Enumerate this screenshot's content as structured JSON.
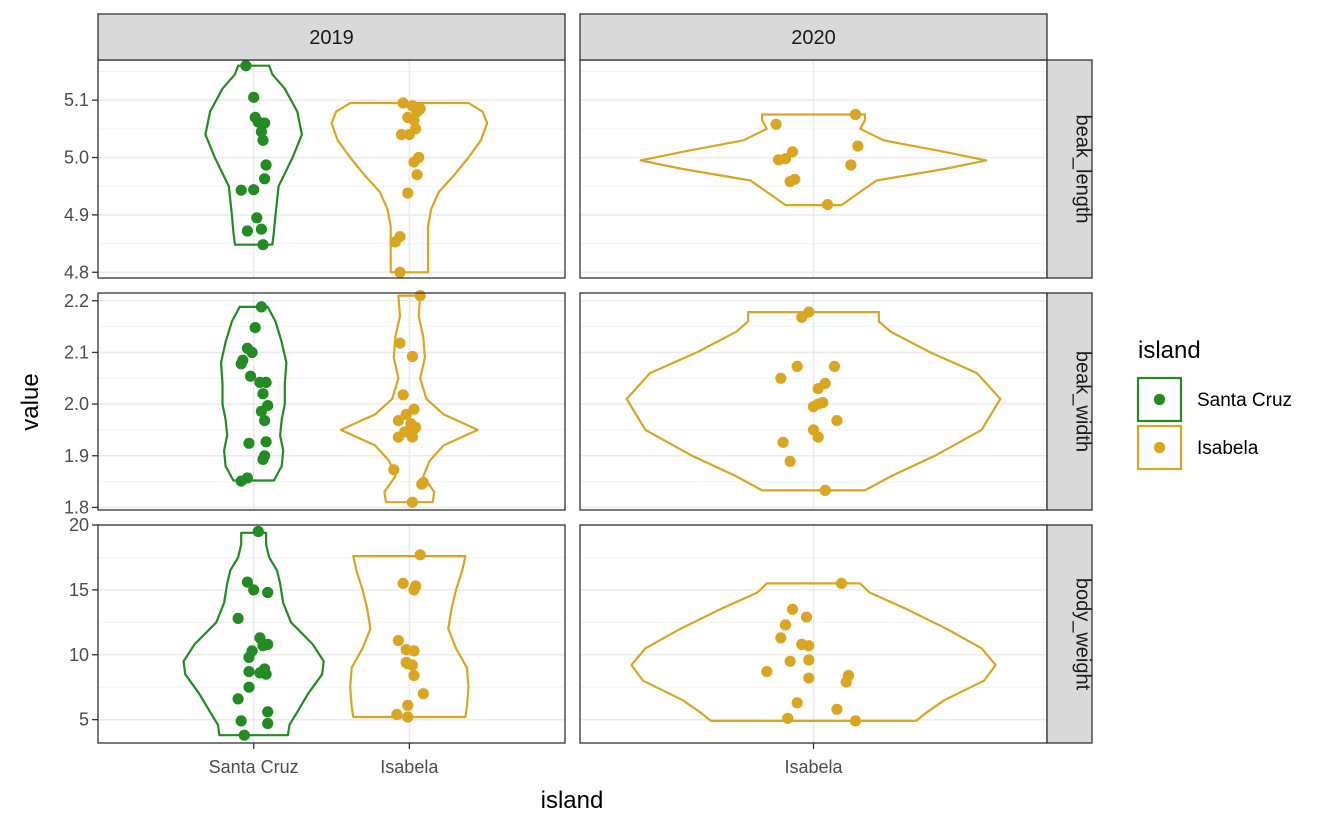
{
  "chart_data": {
    "type": "violin",
    "xlabel": "island",
    "ylabel": "value",
    "legend": {
      "title": "island",
      "placement": "right",
      "entries": [
        {
          "name": "Santa Cruz",
          "color": "#228B22"
        },
        {
          "name": "Isabela",
          "color": "#DAA520"
        }
      ]
    },
    "facet_cols": [
      "2019",
      "2020"
    ],
    "facet_rows": [
      "beak_length",
      "beak_width",
      "body_weight"
    ],
    "x_categories": {
      "2019": [
        "Santa Cruz",
        "Isabela"
      ],
      "2020": [
        "Isabela"
      ]
    },
    "rows": {
      "beak_length": {
        "ylim": [
          4.79,
          5.17
        ],
        "yticks": [
          4.8,
          4.9,
          5.0,
          5.1
        ],
        "ytick_labels": [
          "4.8",
          "4.9",
          "5.0",
          "5.1"
        ]
      },
      "beak_width": {
        "ylim": [
          1.795,
          2.215
        ],
        "yticks": [
          1.8,
          1.9,
          2.0,
          2.1,
          2.2
        ],
        "ytick_labels": [
          "1.8",
          "1.9",
          "2.0",
          "2.1",
          "2.2"
        ]
      },
      "body_weight": {
        "ylim": [
          3.2,
          20.0
        ],
        "yticks": [
          5,
          10,
          15,
          20
        ],
        "ytick_labels": [
          "5",
          "10",
          "15",
          "20"
        ]
      }
    },
    "groups": [
      {
        "row": "beak_length",
        "col": "2019",
        "island": "Santa Cruz",
        "points": [
          [
            -0.05,
            5.16
          ],
          [
            0.0,
            5.105
          ],
          [
            0.01,
            5.07
          ],
          [
            0.03,
            5.062
          ],
          [
            0.07,
            5.06
          ],
          [
            0.05,
            5.045
          ],
          [
            0.06,
            5.03
          ],
          [
            0.08,
            4.987
          ],
          [
            0.07,
            4.963
          ],
          [
            -0.08,
            4.943
          ],
          [
            0.0,
            4.944
          ],
          [
            0.02,
            4.895
          ],
          [
            0.05,
            4.875
          ],
          [
            -0.04,
            4.872
          ],
          [
            0.06,
            4.848
          ]
        ],
        "violin": [
          [
            4.848,
            0.12
          ],
          [
            4.87,
            0.13
          ],
          [
            4.9,
            0.14
          ],
          [
            4.95,
            0.16
          ],
          [
            5.0,
            0.25
          ],
          [
            5.04,
            0.31
          ],
          [
            5.08,
            0.28
          ],
          [
            5.12,
            0.2
          ],
          [
            5.145,
            0.12
          ],
          [
            5.16,
            0.1
          ]
        ]
      },
      {
        "row": "beak_length",
        "col": "2019",
        "island": "Isabela",
        "points": [
          [
            -0.04,
            5.095
          ],
          [
            0.02,
            5.09
          ],
          [
            0.05,
            5.08
          ],
          [
            0.07,
            5.085
          ],
          [
            -0.01,
            5.07
          ],
          [
            0.03,
            5.065
          ],
          [
            0.04,
            5.05
          ],
          [
            -0.05,
            5.04
          ],
          [
            0.0,
            5.04
          ],
          [
            0.06,
            5.0
          ],
          [
            0.03,
            4.992
          ],
          [
            0.05,
            4.97
          ],
          [
            -0.01,
            4.938
          ],
          [
            -0.06,
            4.862
          ],
          [
            -0.09,
            4.853
          ],
          [
            -0.06,
            4.8
          ]
        ],
        "violin": [
          [
            4.8,
            0.12
          ],
          [
            4.82,
            0.12
          ],
          [
            4.85,
            0.12
          ],
          [
            4.88,
            0.12
          ],
          [
            4.91,
            0.14
          ],
          [
            4.94,
            0.19
          ],
          [
            4.97,
            0.29
          ],
          [
            5.0,
            0.38
          ],
          [
            5.03,
            0.46
          ],
          [
            5.06,
            0.5
          ],
          [
            5.08,
            0.47
          ],
          [
            5.095,
            0.38
          ]
        ]
      },
      {
        "row": "beak_length",
        "col": "2020",
        "island": "Isabela",
        "points": [
          [
            -0.16,
            5.058
          ],
          [
            0.18,
            5.075
          ],
          [
            0.19,
            5.02
          ],
          [
            -0.09,
            5.01
          ],
          [
            -0.12,
            4.998
          ],
          [
            -0.15,
            4.996
          ],
          [
            0.16,
            4.987
          ],
          [
            -0.08,
            4.962
          ],
          [
            -0.1,
            4.958
          ],
          [
            0.06,
            4.918
          ]
        ],
        "violin": [
          [
            4.917,
            0.12
          ],
          [
            4.94,
            0.2
          ],
          [
            4.96,
            0.27
          ],
          [
            4.98,
            0.56
          ],
          [
            4.995,
            0.74
          ],
          [
            5.01,
            0.56
          ],
          [
            5.03,
            0.3
          ],
          [
            5.05,
            0.2
          ],
          [
            5.065,
            0.22
          ],
          [
            5.075,
            0.22
          ]
        ]
      },
      {
        "row": "beak_width",
        "col": "2019",
        "island": "Santa Cruz",
        "points": [
          [
            0.05,
            2.188
          ],
          [
            0.01,
            2.148
          ],
          [
            -0.04,
            2.108
          ],
          [
            -0.01,
            2.1
          ],
          [
            -0.07,
            2.085
          ],
          [
            -0.08,
            2.078
          ],
          [
            -0.02,
            2.054
          ],
          [
            0.04,
            2.042
          ],
          [
            0.08,
            2.042
          ],
          [
            0.06,
            2.02
          ],
          [
            0.09,
            1.997
          ],
          [
            0.05,
            1.986
          ],
          [
            0.07,
            1.968
          ],
          [
            -0.03,
            1.924
          ],
          [
            0.08,
            1.927
          ],
          [
            0.07,
            1.9
          ],
          [
            0.06,
            1.893
          ],
          [
            -0.04,
            1.857
          ],
          [
            -0.08,
            1.851
          ]
        ],
        "violin": [
          [
            1.852,
            0.13
          ],
          [
            1.88,
            0.18
          ],
          [
            1.91,
            0.19
          ],
          [
            1.94,
            0.17
          ],
          [
            1.97,
            0.18
          ],
          [
            2.0,
            0.2
          ],
          [
            2.04,
            0.2
          ],
          [
            2.08,
            0.21
          ],
          [
            2.12,
            0.18
          ],
          [
            2.16,
            0.14
          ],
          [
            2.188,
            0.09
          ]
        ]
      },
      {
        "row": "beak_width",
        "col": "2019",
        "island": "Isabela",
        "points": [
          [
            0.07,
            2.21
          ],
          [
            -0.06,
            2.118
          ],
          [
            0.02,
            2.092
          ],
          [
            -0.04,
            2.018
          ],
          [
            0.03,
            1.99
          ],
          [
            -0.02,
            1.98
          ],
          [
            -0.07,
            1.968
          ],
          [
            0.01,
            1.962
          ],
          [
            0.04,
            1.955
          ],
          [
            0.03,
            1.952
          ],
          [
            -0.03,
            1.946
          ],
          [
            -0.07,
            1.936
          ],
          [
            0.02,
            1.936
          ],
          [
            -0.1,
            1.873
          ],
          [
            0.09,
            1.848
          ],
          [
            0.08,
            1.845
          ],
          [
            0.02,
            1.81
          ]
        ],
        "violin": [
          [
            1.81,
            0.15
          ],
          [
            1.83,
            0.16
          ],
          [
            1.86,
            0.09
          ],
          [
            1.89,
            0.13
          ],
          [
            1.92,
            0.22
          ],
          [
            1.95,
            0.44
          ],
          [
            1.98,
            0.22
          ],
          [
            2.01,
            0.11
          ],
          [
            2.05,
            0.07
          ],
          [
            2.09,
            0.1
          ],
          [
            2.13,
            0.09
          ],
          [
            2.17,
            0.06
          ],
          [
            2.21,
            0.07
          ]
        ]
      },
      {
        "row": "beak_width",
        "col": "2020",
        "island": "Isabela",
        "points": [
          [
            -0.02,
            2.178
          ],
          [
            -0.05,
            2.168
          ],
          [
            -0.07,
            2.073
          ],
          [
            0.09,
            2.073
          ],
          [
            -0.14,
            2.05
          ],
          [
            0.05,
            2.04
          ],
          [
            0.02,
            2.03
          ],
          [
            0.04,
            2.003
          ],
          [
            0.02,
            2.0
          ],
          [
            0.0,
            1.995
          ],
          [
            0.1,
            1.968
          ],
          [
            0.0,
            1.95
          ],
          [
            0.02,
            1.936
          ],
          [
            -0.13,
            1.926
          ],
          [
            -0.1,
            1.889
          ],
          [
            0.05,
            1.833
          ]
        ],
        "violin": [
          [
            1.833,
            0.22
          ],
          [
            1.86,
            0.33
          ],
          [
            1.9,
            0.52
          ],
          [
            1.95,
            0.72
          ],
          [
            2.01,
            0.8
          ],
          [
            2.06,
            0.7
          ],
          [
            2.1,
            0.5
          ],
          [
            2.14,
            0.33
          ],
          [
            2.16,
            0.28
          ],
          [
            2.178,
            0.28
          ]
        ]
      },
      {
        "row": "body_weight",
        "col": "2019",
        "island": "Santa Cruz",
        "points": [
          [
            0.03,
            19.5
          ],
          [
            -0.04,
            15.6
          ],
          [
            0.0,
            15.0
          ],
          [
            0.09,
            14.8
          ],
          [
            -0.1,
            12.8
          ],
          [
            0.04,
            11.3
          ],
          [
            0.09,
            10.8
          ],
          [
            0.06,
            10.7
          ],
          [
            -0.01,
            10.3
          ],
          [
            -0.03,
            9.8
          ],
          [
            0.07,
            8.9
          ],
          [
            -0.03,
            8.7
          ],
          [
            0.04,
            8.6
          ],
          [
            0.08,
            8.5
          ],
          [
            -0.03,
            7.5
          ],
          [
            -0.1,
            6.6
          ],
          [
            0.09,
            5.6
          ],
          [
            0.09,
            4.7
          ],
          [
            -0.08,
            4.9
          ],
          [
            -0.06,
            3.8
          ]
        ],
        "violin": [
          [
            3.8,
            0.22
          ],
          [
            4.6,
            0.23
          ],
          [
            5.6,
            0.28
          ],
          [
            7.0,
            0.35
          ],
          [
            8.5,
            0.44
          ],
          [
            9.5,
            0.45
          ],
          [
            10.8,
            0.38
          ],
          [
            12.5,
            0.24
          ],
          [
            14.0,
            0.19
          ],
          [
            15.5,
            0.17
          ],
          [
            16.5,
            0.15
          ],
          [
            17.5,
            0.1
          ],
          [
            18.5,
            0.08
          ],
          [
            19.4,
            0.08
          ]
        ]
      },
      {
        "row": "body_weight",
        "col": "2019",
        "island": "Isabela",
        "points": [
          [
            0.07,
            17.7
          ],
          [
            -0.04,
            15.5
          ],
          [
            0.04,
            15.3
          ],
          [
            0.03,
            15.0
          ],
          [
            -0.07,
            11.1
          ],
          [
            -0.02,
            10.4
          ],
          [
            0.03,
            10.3
          ],
          [
            -0.02,
            9.4
          ],
          [
            0.02,
            9.2
          ],
          [
            -0.01,
            9.3
          ],
          [
            0.03,
            8.4
          ],
          [
            0.09,
            7.0
          ],
          [
            -0.01,
            6.1
          ],
          [
            -0.08,
            5.4
          ],
          [
            -0.01,
            5.2
          ]
        ],
        "violin": [
          [
            5.2,
            0.36
          ],
          [
            6.0,
            0.37
          ],
          [
            7.5,
            0.38
          ],
          [
            9.0,
            0.37
          ],
          [
            10.5,
            0.3
          ],
          [
            12.0,
            0.25
          ],
          [
            13.5,
            0.27
          ],
          [
            15.0,
            0.3
          ],
          [
            16.5,
            0.34
          ],
          [
            17.6,
            0.36
          ]
        ]
      },
      {
        "row": "body_weight",
        "col": "2020",
        "island": "Isabela",
        "points": [
          [
            0.12,
            15.5
          ],
          [
            -0.09,
            13.5
          ],
          [
            -0.03,
            12.9
          ],
          [
            -0.12,
            12.3
          ],
          [
            -0.14,
            11.3
          ],
          [
            -0.05,
            10.8
          ],
          [
            -0.02,
            10.7
          ],
          [
            -0.1,
            9.5
          ],
          [
            -0.02,
            9.6
          ],
          [
            -0.2,
            8.7
          ],
          [
            0.15,
            8.4
          ],
          [
            -0.02,
            8.2
          ],
          [
            0.14,
            7.9
          ],
          [
            -0.07,
            6.3
          ],
          [
            0.1,
            5.8
          ],
          [
            -0.11,
            5.1
          ],
          [
            0.18,
            4.9
          ]
        ],
        "violin": [
          [
            4.9,
            0.44
          ],
          [
            5.5,
            0.48
          ],
          [
            6.5,
            0.56
          ],
          [
            8.0,
            0.73
          ],
          [
            9.2,
            0.78
          ],
          [
            10.5,
            0.72
          ],
          [
            12.0,
            0.57
          ],
          [
            13.5,
            0.4
          ],
          [
            14.8,
            0.24
          ],
          [
            15.5,
            0.2
          ]
        ]
      }
    ]
  }
}
